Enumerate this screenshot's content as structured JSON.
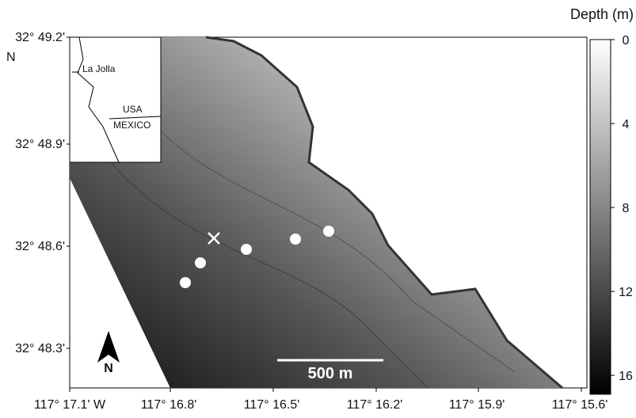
{
  "map": {
    "lat_labels": [
      "32° 49.2'",
      "32° 48.9'",
      "32° 48.6'",
      "32° 48.3'"
    ],
    "lat_hemisphere": "N",
    "lon_labels": [
      "117° 17.1' W",
      "117° 16.8'",
      "117° 16.5'",
      "117° 16.2'",
      "117° 15.9'",
      "117° 15.6'"
    ],
    "colorbar": {
      "title": "Depth (m)",
      "lim": [
        0,
        16.9
      ],
      "ticks": [
        0,
        4,
        8,
        12,
        16
      ]
    },
    "inset": {
      "place": "La Jolla",
      "country_north": "USA",
      "country_south": "MEXICO"
    },
    "scale_bar": "500 m",
    "north_arrow": "N"
  }
}
